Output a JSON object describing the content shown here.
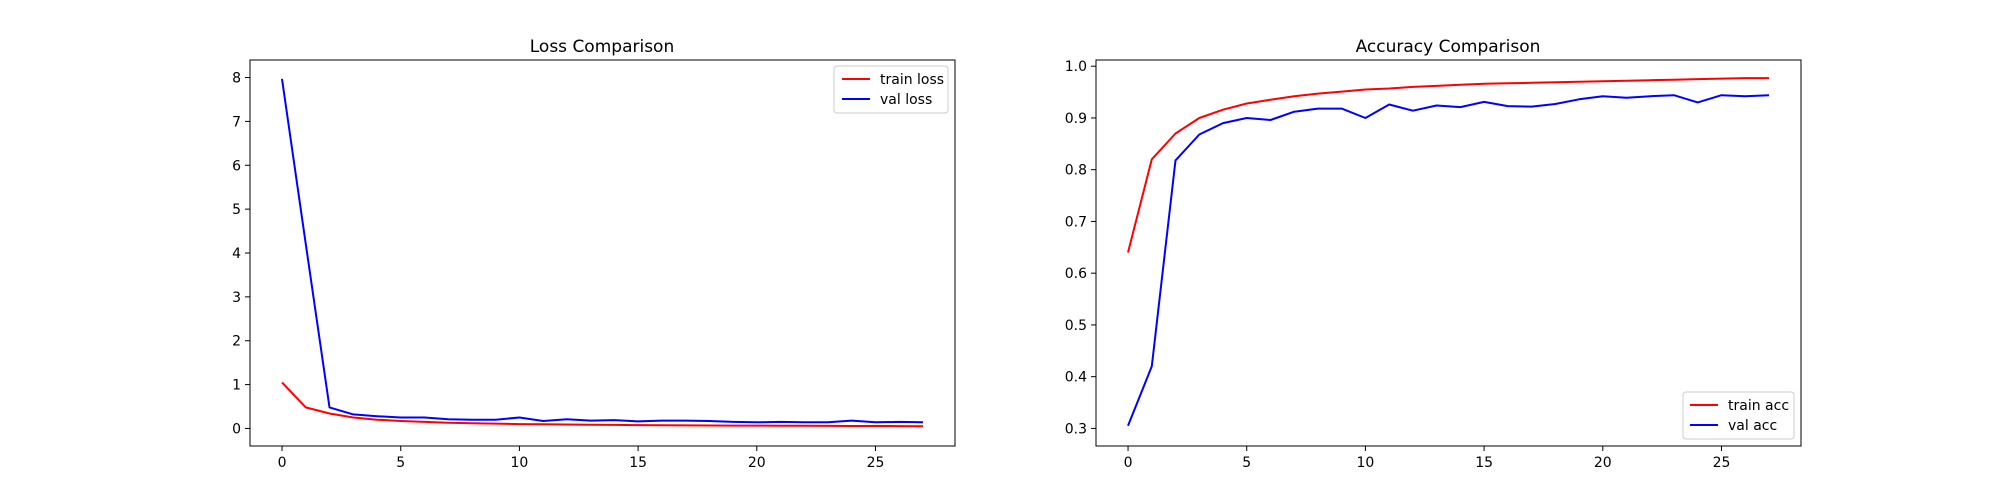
{
  "chart_data": [
    {
      "type": "line",
      "title": "Loss Comparison",
      "xlabel": "",
      "ylabel": "",
      "xlim": [
        -1.35,
        28.35
      ],
      "ylim": [
        -0.4,
        8.4
      ],
      "xticks": [
        0,
        5,
        10,
        15,
        20,
        25
      ],
      "yticks": [
        0,
        1,
        2,
        3,
        4,
        5,
        6,
        7,
        8
      ],
      "legend_position": "top-right",
      "grid": false,
      "x": [
        0,
        1,
        2,
        3,
        4,
        5,
        6,
        7,
        8,
        9,
        10,
        11,
        12,
        13,
        14,
        15,
        16,
        17,
        18,
        19,
        20,
        21,
        22,
        23,
        24,
        25,
        26,
        27
      ],
      "series": [
        {
          "name": "train loss",
          "color": "#ff0000",
          "values": [
            1.05,
            0.48,
            0.34,
            0.25,
            0.2,
            0.17,
            0.15,
            0.13,
            0.12,
            0.11,
            0.1,
            0.095,
            0.09,
            0.085,
            0.08,
            0.077,
            0.074,
            0.07,
            0.068,
            0.066,
            0.064,
            0.062,
            0.06,
            0.058,
            0.056,
            0.055,
            0.054,
            0.052
          ]
        },
        {
          "name": "val loss",
          "color": "#0000ff",
          "values": [
            7.97,
            4.2,
            0.48,
            0.32,
            0.28,
            0.25,
            0.25,
            0.21,
            0.2,
            0.2,
            0.25,
            0.17,
            0.21,
            0.18,
            0.19,
            0.16,
            0.18,
            0.18,
            0.17,
            0.15,
            0.14,
            0.15,
            0.14,
            0.14,
            0.18,
            0.14,
            0.15,
            0.14
          ]
        }
      ]
    },
    {
      "type": "line",
      "title": "Accuracy Comparison",
      "xlabel": "",
      "ylabel": "",
      "xlim": [
        -1.35,
        28.35
      ],
      "ylim": [
        0.266,
        1.012
      ],
      "xticks": [
        0,
        5,
        10,
        15,
        20,
        25
      ],
      "yticks": [
        0.3,
        0.4,
        0.5,
        0.6,
        0.7,
        0.8,
        0.9,
        1.0
      ],
      "ytick_labels": [
        "0.3",
        "0.4",
        "0.5",
        "0.6",
        "0.7",
        "0.8",
        "0.9",
        "1.0"
      ],
      "legend_position": "bottom-right",
      "grid": false,
      "x": [
        0,
        1,
        2,
        3,
        4,
        5,
        6,
        7,
        8,
        9,
        10,
        11,
        12,
        13,
        14,
        15,
        16,
        17,
        18,
        19,
        20,
        21,
        22,
        23,
        24,
        25,
        26,
        27
      ],
      "series": [
        {
          "name": "train acc",
          "color": "#ff0000",
          "values": [
            0.64,
            0.82,
            0.87,
            0.9,
            0.916,
            0.928,
            0.935,
            0.942,
            0.947,
            0.951,
            0.955,
            0.957,
            0.96,
            0.962,
            0.964,
            0.966,
            0.967,
            0.968,
            0.969,
            0.97,
            0.971,
            0.972,
            0.973,
            0.974,
            0.975,
            0.976,
            0.977,
            0.977
          ]
        },
        {
          "name": "val acc",
          "color": "#0000ff",
          "values": [
            0.305,
            0.42,
            0.818,
            0.868,
            0.89,
            0.9,
            0.896,
            0.912,
            0.918,
            0.918,
            0.9,
            0.926,
            0.914,
            0.924,
            0.921,
            0.931,
            0.923,
            0.922,
            0.927,
            0.936,
            0.942,
            0.939,
            0.942,
            0.944,
            0.93,
            0.944,
            0.942,
            0.944
          ]
        }
      ]
    }
  ]
}
